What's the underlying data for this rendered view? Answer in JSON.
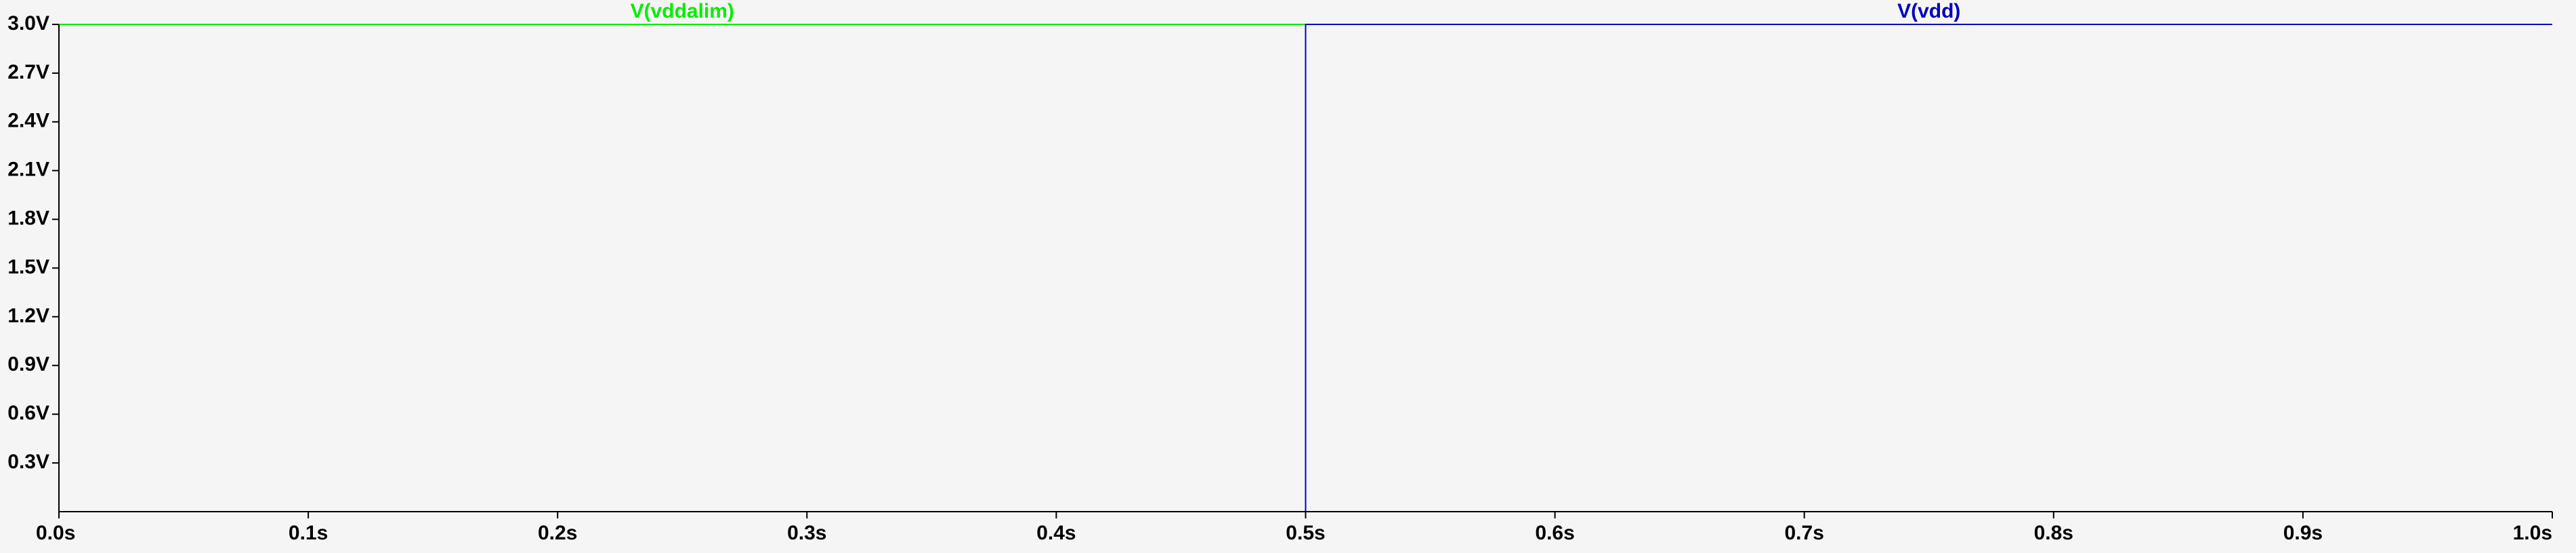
{
  "chart_data": {
    "type": "line",
    "title": "",
    "xlabel": "",
    "ylabel": "",
    "xlim": [
      0.0,
      1.0
    ],
    "ylim": [
      0.0,
      3.0
    ],
    "grid": false,
    "legend_placement": "top",
    "x_tick_labels": [
      "0.0s",
      "0.1s",
      "0.2s",
      "0.3s",
      "0.4s",
      "0.5s",
      "0.6s",
      "0.7s",
      "0.8s",
      "0.9s",
      "1.0s"
    ],
    "x_ticks": [
      0.0,
      0.1,
      0.2,
      0.3,
      0.4,
      0.5,
      0.6,
      0.7,
      0.8,
      0.9,
      1.0
    ],
    "y_tick_labels": [
      "0.3V",
      "0.6V",
      "0.9V",
      "1.2V",
      "1.5V",
      "1.8V",
      "2.1V",
      "2.4V",
      "2.7V",
      "3.0V"
    ],
    "y_ticks": [
      0.3,
      0.6,
      0.9,
      1.2,
      1.5,
      1.8,
      2.1,
      2.4,
      2.7,
      3.0
    ],
    "series": [
      {
        "name": "V(vddalim)",
        "color": "#00ee00",
        "x": [
          0.0,
          1.0
        ],
        "y": [
          3.0,
          3.0
        ],
        "legend_x": 0.25
      },
      {
        "name": "V(vdd)",
        "color": "#0000c0",
        "x": [
          0.0,
          0.5,
          0.5,
          1.0
        ],
        "y": [
          0.0,
          0.0,
          3.0,
          3.0
        ],
        "legend_x": 0.75
      }
    ]
  }
}
